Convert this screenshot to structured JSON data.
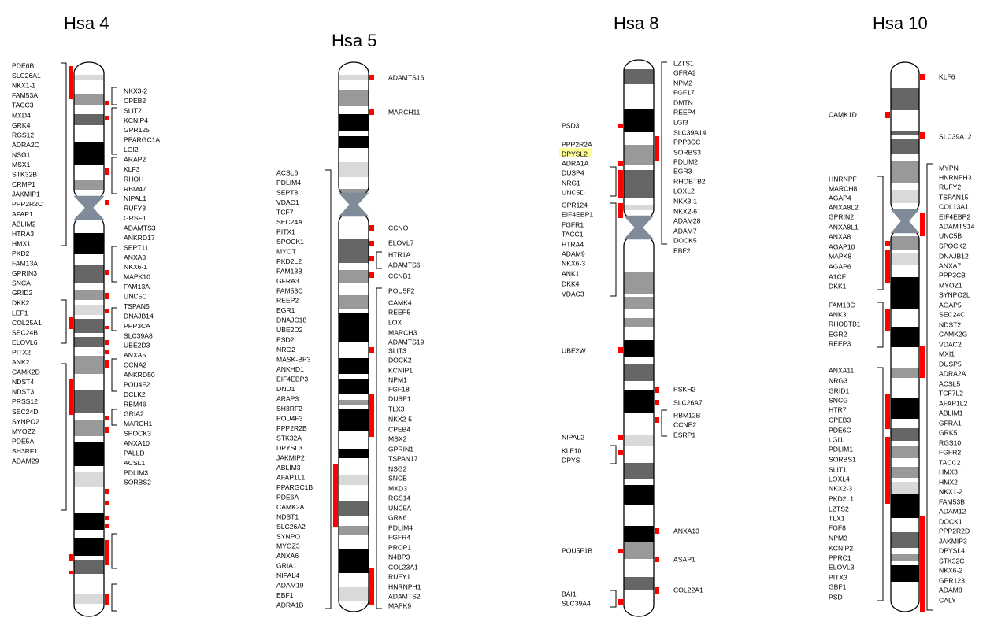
{
  "chromosomes": [
    {
      "id": "hsa4",
      "title": "Hsa 4",
      "left_genes": [
        "PDE6B",
        "SLC26A1",
        "NKX1-1",
        "FAM53A",
        "TACC3",
        "MXD4",
        "GRK4",
        "RGS12",
        "ADRA2C",
        "NSG1",
        "MSX1",
        "STK32B",
        "CRMP1",
        "JAKMIP1",
        "PPP2R2C",
        "AFAP1",
        "ABLIM2",
        "HTRA3",
        "HMX1",
        "PKD2",
        "FAM13A",
        "GPRIN3",
        "SNCA",
        "GRID2",
        "DKK2",
        "LEF1",
        "COL25A1",
        "SEC24B",
        "ELOVL6",
        "PITX2",
        "ANK2",
        "CAMK2D",
        "NDST4",
        "NDST3",
        "PRSS12",
        "SEC24D",
        "SYNPO2",
        "MYOZ2",
        "PDE5A",
        "SH3RF1",
        "ADAM29"
      ],
      "right_genes": [
        "NKX3-2",
        "CPEB2",
        "SLIT2",
        "KCNIP4",
        "GPR125",
        "PPARGC1A",
        "LGI2",
        "ARAP2",
        "KLF3",
        "RHOH",
        "RBM47",
        "NIPAL1",
        "RUFY3",
        "GRSF1",
        "ADAMTS3",
        "ANKRD17",
        "SEPT11",
        "ANXA3",
        "NKX6-1",
        "MAPK10",
        "FAM13A",
        "UNC5C",
        "TSPAN5",
        "DNAJB14",
        "PPP3CA",
        "SLC39A8",
        "UBE2D3",
        "ANXA5",
        "CCNA2",
        "ANKRD50",
        "POU4F2",
        "DCLK2",
        "RBM46",
        "GRIA2",
        "MARCH1",
        "SPOCK3",
        "ANXA10",
        "PALLD",
        "ACSL1",
        "PDLIM3",
        "SORBS2"
      ]
    },
    {
      "id": "hsa5",
      "title": "Hsa 5",
      "left_genes": [
        "ACSL6",
        "PDLIM4",
        "SEPT8",
        "VDAC1",
        "TCF7",
        "SEC24A",
        "PITX1",
        "SPOCK1",
        "MYOT",
        "PKD2L2",
        "FAM13B",
        "GFRA3",
        "FAM53C",
        "REEP2",
        "EGR1",
        "DNAJC18",
        "UBE2D2",
        "PSD2",
        "NRG2",
        "MASK-BP3",
        "ANKHD1",
        "EIF4EBP3",
        "DND1",
        "ARAP3",
        "SH3RF2",
        "POU4F3",
        "PPP2R2B",
        "STK32A",
        "DPYSL3",
        "JAKMIP2",
        "ABLIM3",
        "AFAP1L1",
        "PPARGC1B",
        "PDE6A",
        "CAMK2A",
        "NDST1",
        "SLC26A2",
        "SYNPO",
        "MYOZ3",
        "ANXA6",
        "GRIA1",
        "NIPAL4",
        "ADAM19",
        "EBF1",
        "ADRA1B"
      ],
      "right_genes": [
        "ADAMTS16",
        "MARCH11",
        "CCNO",
        "ELOVL7",
        "HTR1A",
        "ADAMTS6",
        "CCNB1",
        "POU5F2",
        "CAMK4",
        "REEP5",
        "LOX",
        "MARCH3",
        "ADAMTS19",
        "SLIT3",
        "DOCK2",
        "KCNIP1",
        "NPM1",
        "FGF18",
        "DUSP1",
        "TLX3",
        "NKX2-5",
        "CPEB4",
        "MSX2",
        "GPRIN1",
        "TSPAN17",
        "NSG2",
        "SNCB",
        "MXD3",
        "RGS14",
        "UNC5A",
        "GRK6",
        "PDLIM4",
        "FGFR4",
        "PROP1",
        "N4BP3",
        "COL23A1",
        "RUFY1",
        "HNRNPH1",
        "ADAMTS2",
        "MAPK9"
      ]
    },
    {
      "id": "hsa8",
      "title": "Hsa 8",
      "left_genes": [
        "PSD3",
        "PPP2R2A",
        "DPYSL2",
        "ADRA1A",
        "DUSP4",
        "NRG1",
        "UNC5D",
        "GPR124",
        "EIF4EBP1",
        "FGFR1",
        "TACC1",
        "HTRA4",
        "ADAM9",
        "NKX6-3",
        "ANK1",
        "DKK4",
        "VDAC3",
        "UBE2W",
        "NIPAL2",
        "KLF10",
        "DPYS",
        "POU5F1B",
        "BAI1",
        "SLC39A4"
      ],
      "right_genes": [
        "LZTS1",
        "GFRA2",
        "NPM2",
        "FGF17",
        "DMTN",
        "REEP4",
        "LGI3",
        "SLC39A14",
        "PPP3CC",
        "SORBS3",
        "PDLIM2",
        "EGR3",
        "RHOBTB2",
        "LOXL2",
        "NKX3-1",
        "NKX2-6",
        "ADAM28",
        "ADAM7",
        "DOCK5",
        "EBF2",
        "PSKH2",
        "SLC26A7",
        "RBM12B",
        "CCNE2",
        "ESRP1",
        "ANXA13",
        "ASAP1",
        "COL22A1"
      ]
    },
    {
      "id": "hsa10",
      "title": "Hsa 10",
      "left_genes": [
        "CAMK1D",
        "HNRNPF",
        "MARCH8",
        "AGAP4",
        "ANXA8L2",
        "GPRIN2",
        "ANXA8L1",
        "ANXA8",
        "AGAP10",
        "MAPK8",
        "AGAP6",
        "A1CF",
        "DKK1",
        "FAM13C",
        "ANK3",
        "RHOBTB1",
        "EGR2",
        "REEP3",
        "ANXA11",
        "NRG3",
        "GRID1",
        "SNCG",
        "HTR7",
        "CPEB3",
        "PDE6C",
        "LGI1",
        "PDLIM1",
        "SORBS1",
        "SLIT1",
        "LOXL4",
        "NKX2-3",
        "PKD2L1",
        "LZTS2",
        "TLX1",
        "FGF8",
        "NPM3",
        "KCNIP2",
        "PPRC1",
        "ELOVL3",
        "PITX3",
        "GBF1",
        "PSD"
      ],
      "right_genes": [
        "KLF6",
        "SLC39A12",
        "MYPN",
        "HNRNPH3",
        "RUFY2",
        "TSPAN15",
        "COL13A1",
        "EIF4EBP2",
        "ADAMTS14",
        "UNC5B",
        "SPOCK2",
        "DNAJB12",
        "ANXA7",
        "PPP3CB",
        "MYOZ1",
        "SYNPO2L",
        "AGAP5",
        "SEC24C",
        "NDST2",
        "CAMK2G",
        "VDAC2",
        "MXI1",
        "DUSP5",
        "ADRA2A",
        "ACSL5",
        "TCF7L2",
        "AFAP1L2",
        "ABLIM1",
        "GFRA1",
        "GRK5",
        "RGS10",
        "FGFR2",
        "TACC2",
        "HMX3",
        "HMX2",
        "NKX1-2",
        "FAM53B",
        "ADAM12",
        "DOCK1",
        "PPP2R2D",
        "JAKMIP3",
        "DPYSL4",
        "STK32C",
        "NKX6-2",
        "GPR123",
        "ADAM8",
        "CALY"
      ]
    }
  ],
  "highlighted_gene": "DPYSL2",
  "colors": {
    "marker": "#ff0000",
    "highlight": "#ffff99",
    "outline": "#000000",
    "centromere": "#7f8b99",
    "band_black": "#000000",
    "band_dark": "#666666",
    "band_mid": "#999999",
    "band_light": "#d9d9d9",
    "band_white": "#ffffff"
  }
}
